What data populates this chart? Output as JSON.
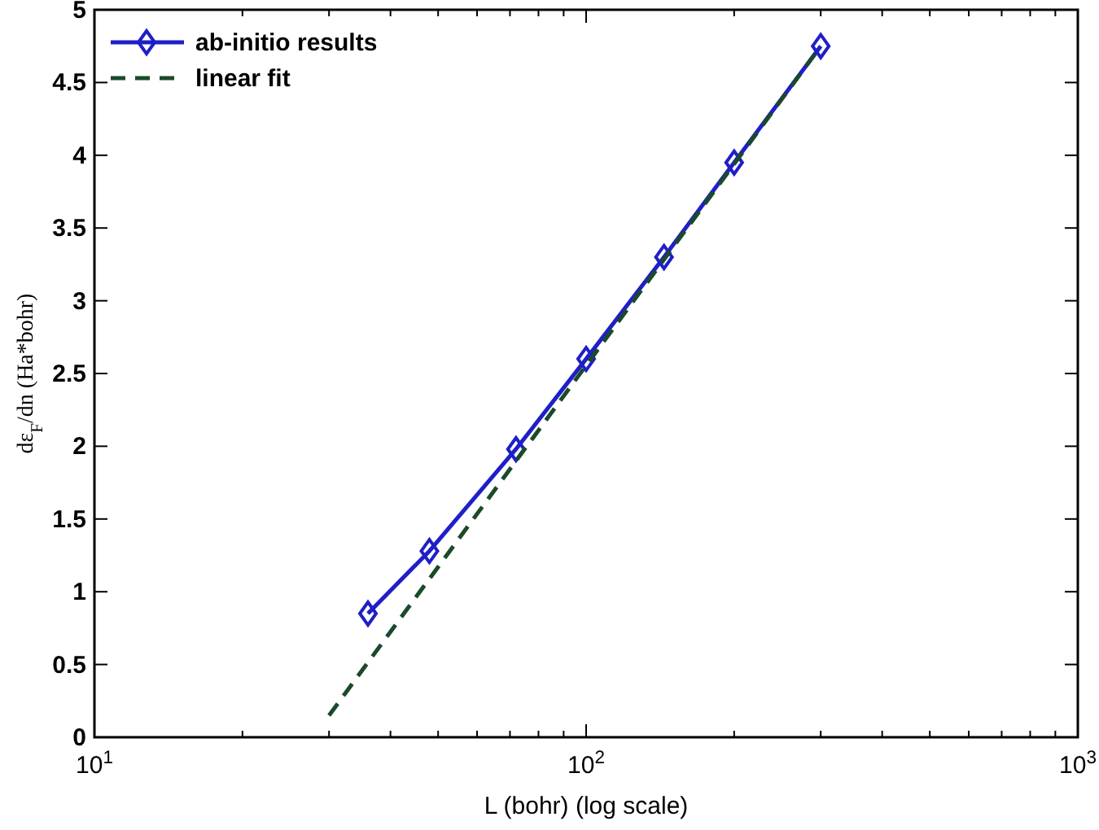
{
  "chart_data": {
    "type": "line",
    "xlabel": "L (bohr)   (log scale)",
    "ylabel": "dε$_{F}$/dn (Ha*bohr)",
    "log": "x",
    "xlim": [
      10,
      1000
    ],
    "xticks": [
      {
        "value": 10,
        "label": "10$^{1}$"
      },
      {
        "value": 100,
        "label": "10$^{2}$"
      },
      {
        "value": 1000,
        "label": "10$^{3}$"
      }
    ],
    "ylim": [
      0,
      5
    ],
    "yticks": [
      0,
      0.5,
      1,
      1.5,
      2,
      2.5,
      3,
      3.5,
      4,
      4.5,
      5
    ],
    "grid": false,
    "legend": "top left",
    "series": [
      {
        "name": "ab-initio results",
        "color": "#1f1fc8",
        "marker": "diamond",
        "line_style": "solid",
        "x": [
          36,
          48,
          72,
          100,
          144,
          200,
          300
        ],
        "values": [
          0.85,
          1.28,
          1.98,
          2.6,
          3.3,
          3.95,
          4.75
        ]
      },
      {
        "name": "linear fit",
        "color": "#1a4a2a",
        "marker": "none",
        "line_style": "dashed",
        "x": [
          30,
          300
        ],
        "values": [
          0.15,
          4.75
        ]
      }
    ]
  }
}
